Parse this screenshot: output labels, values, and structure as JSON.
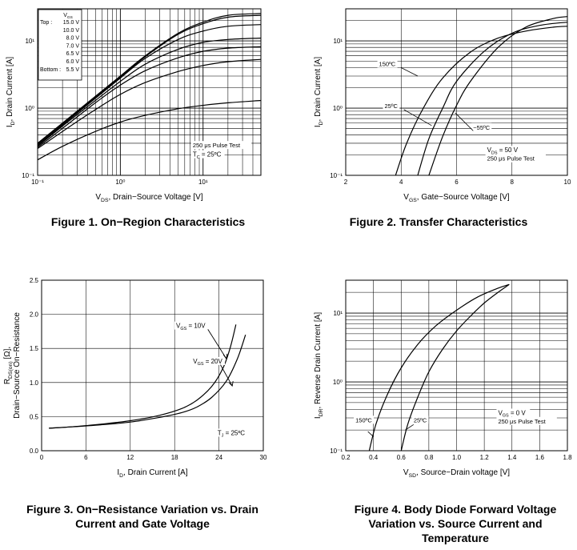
{
  "chart_data": [
    {
      "id": "fig1",
      "type": "line",
      "title": "Figure 1. On−Region Characteristics",
      "xscale": "log",
      "yscale": "log",
      "xlim": [
        0.1,
        50
      ],
      "ylim": [
        0.1,
        30
      ],
      "xticks": [
        {
          "v": 0.1,
          "l": "10⁻¹"
        },
        {
          "v": 1,
          "l": "10⁰"
        },
        {
          "v": 10,
          "l": "10¹"
        }
      ],
      "yticks": [
        {
          "v": 0.1,
          "l": "10⁻¹"
        },
        {
          "v": 1,
          "l": "10⁰"
        },
        {
          "v": 10,
          "l": "10¹"
        }
      ],
      "xlabel": {
        "pre": "V",
        "sub": "DS",
        "post": ", Drain−Source Voltage [V]"
      },
      "ylabel": {
        "pre": "I",
        "sub": "D",
        "post": ", Drain Current [A]"
      },
      "legend": {
        "header": "V_GS",
        "top_label": "Top :",
        "bottom_label": "Bottom :",
        "items": [
          "15.0 V",
          "10.0 V",
          "8.0 V",
          "7.0 V",
          "6.5 V",
          "6.0 V",
          "5.5 V"
        ]
      },
      "annotations": [
        {
          "text": "250 μs Pulse Test",
          "x": 7.5,
          "y": 0.26
        },
        {
          "pre": "T",
          "sub": "C",
          "post": " = 25ºC",
          "x": 7.5,
          "y": 0.19
        }
      ],
      "series": [
        {
          "name": "15.0 V",
          "x": [
            0.1,
            0.2,
            0.5,
            1,
            2,
            5,
            10,
            20,
            50
          ],
          "y": [
            0.3,
            0.6,
            1.5,
            3,
            6,
            13,
            19,
            24,
            25.5
          ]
        },
        {
          "name": "10.0 V",
          "x": [
            0.1,
            0.2,
            0.5,
            1,
            2,
            5,
            10,
            20,
            50
          ],
          "y": [
            0.29,
            0.58,
            1.45,
            2.9,
            5.8,
            12.5,
            18,
            22.5,
            24
          ]
        },
        {
          "name": "8.0 V",
          "x": [
            0.1,
            0.2,
            0.5,
            1,
            2,
            5,
            10,
            20,
            50
          ],
          "y": [
            0.28,
            0.56,
            1.4,
            2.8,
            5.5,
            10.5,
            14,
            16.5,
            17.5
          ]
        },
        {
          "name": "7.0 V",
          "x": [
            0.1,
            0.2,
            0.5,
            1,
            2,
            5,
            10,
            20,
            50
          ],
          "y": [
            0.27,
            0.54,
            1.3,
            2.5,
            4.5,
            7.5,
            9.5,
            10.5,
            11
          ]
        },
        {
          "name": "6.5 V",
          "x": [
            0.1,
            0.2,
            0.5,
            1,
            2,
            5,
            10,
            20,
            50
          ],
          "y": [
            0.26,
            0.5,
            1.2,
            2.2,
            3.6,
            5.6,
            7,
            7.8,
            8.2
          ]
        },
        {
          "name": "6.0 V",
          "x": [
            0.1,
            0.2,
            0.5,
            1,
            2,
            5,
            10,
            20,
            50
          ],
          "y": [
            0.25,
            0.45,
            0.95,
            1.6,
            2.4,
            3.5,
            4.3,
            4.9,
            5.3
          ]
        },
        {
          "name": "5.5 V",
          "x": [
            0.1,
            0.2,
            0.5,
            1,
            2,
            5,
            10,
            20,
            50
          ],
          "y": [
            0.17,
            0.27,
            0.45,
            0.62,
            0.78,
            0.98,
            1.1,
            1.2,
            1.3
          ]
        }
      ]
    },
    {
      "id": "fig2",
      "type": "line",
      "title": "Figure 2. Transfer Characteristics",
      "xscale": "linear",
      "yscale": "log",
      "xlim": [
        2,
        10
      ],
      "ylim": [
        0.1,
        30
      ],
      "xticks": [
        {
          "v": 2,
          "l": "2"
        },
        {
          "v": 4,
          "l": "4"
        },
        {
          "v": 6,
          "l": "6"
        },
        {
          "v": 8,
          "l": "8"
        },
        {
          "v": 10,
          "l": "10"
        }
      ],
      "yticks": [
        {
          "v": 0.1,
          "l": "10⁻¹"
        },
        {
          "v": 1,
          "l": "10⁰"
        },
        {
          "v": 10,
          "l": "10¹"
        }
      ],
      "xlabel": {
        "pre": "V",
        "sub": "GS",
        "post": ", Gate−Source Voltage [V]"
      },
      "ylabel": {
        "pre": "I",
        "sub": "D",
        "post": ", Drain Current [A]"
      },
      "annotations": [
        {
          "text": "150ºC",
          "x": 3.2,
          "y": 4.2
        },
        {
          "text": "25ºC",
          "x": 3.4,
          "y": 1.0
        },
        {
          "text": "−55ºC",
          "x": 6.6,
          "y": 0.48
        },
        {
          "pre": "V",
          "sub": "DS",
          "post": " = 50 V",
          "x": 7.1,
          "y": 0.22
        },
        {
          "text": "250 μs Pulse Test",
          "x": 7.1,
          "y": 0.165
        }
      ],
      "series": [
        {
          "name": "150ºC",
          "x": [
            3.8,
            4.2,
            4.8,
            5.5,
            6.5,
            7.5,
            8.5,
            9.5,
            10
          ],
          "y": [
            0.1,
            0.3,
            1,
            2.8,
            6.8,
            11,
            14,
            16,
            16.5
          ]
        },
        {
          "name": "25ºC",
          "x": [
            4.6,
            5.0,
            5.5,
            6.0,
            7.0,
            8.0,
            9.0,
            10
          ],
          "y": [
            0.1,
            0.35,
            1,
            2.5,
            7,
            13,
            17,
            19
          ]
        },
        {
          "name": "−55ºC",
          "x": [
            5.0,
            5.5,
            6.0,
            6.5,
            7.5,
            8.5,
            9.5,
            10
          ],
          "y": [
            0.1,
            0.38,
            1.1,
            2.5,
            8,
            16,
            21.5,
            23
          ]
        }
      ]
    },
    {
      "id": "fig3",
      "type": "line",
      "title": "Figure 3. On−Resistance Variation vs. Drain Current and Gate Voltage",
      "xscale": "linear",
      "yscale": "linear",
      "xlim": [
        0,
        30
      ],
      "ylim": [
        0,
        2.5
      ],
      "xticks": [
        {
          "v": 0,
          "l": "0"
        },
        {
          "v": 6,
          "l": "6"
        },
        {
          "v": 12,
          "l": "12"
        },
        {
          "v": 18,
          "l": "18"
        },
        {
          "v": 24,
          "l": "24"
        },
        {
          "v": 30,
          "l": "30"
        }
      ],
      "yticks": [
        {
          "v": 0,
          "l": "0.0"
        },
        {
          "v": 0.5,
          "l": "0.5"
        },
        {
          "v": 1.0,
          "l": "1.0"
        },
        {
          "v": 1.5,
          "l": "1.5"
        },
        {
          "v": 2.0,
          "l": "2.0"
        },
        {
          "v": 2.5,
          "l": "2.5"
        }
      ],
      "xlabel": {
        "pre": "I",
        "sub": "D",
        "post": ", Drain Current  [A]"
      },
      "ylabel_line1": {
        "pre": "R",
        "sub": "DS(on)",
        "post": " [Ω],"
      },
      "ylabel_line2": "Drain−Source On−Resistance",
      "annotations": [
        {
          "pre": "V",
          "sub": "GS",
          "post": " = 10V",
          "x": 18.2,
          "y": 1.8
        },
        {
          "pre": "V",
          "sub": "GS",
          "post": " = 20V",
          "x": 20.5,
          "y": 1.28
        },
        {
          "pre": "T",
          "sub": "J",
          "post": " = 25ºC",
          "x": 23.8,
          "y": 0.23
        }
      ],
      "series": [
        {
          "name": "V_GS = 10V",
          "x": [
            1,
            4,
            8,
            12,
            16,
            19,
            21,
            23,
            24.5,
            25.5,
            26.3
          ],
          "y": [
            0.33,
            0.35,
            0.39,
            0.44,
            0.52,
            0.62,
            0.74,
            0.94,
            1.2,
            1.5,
            1.85
          ]
        },
        {
          "name": "V_GS = 20V",
          "x": [
            1,
            4,
            8,
            12,
            16,
            19,
            21,
            23,
            25,
            26.5,
            27.6
          ],
          "y": [
            0.33,
            0.35,
            0.38,
            0.42,
            0.49,
            0.56,
            0.64,
            0.78,
            1.02,
            1.35,
            1.7
          ]
        }
      ]
    },
    {
      "id": "fig4",
      "type": "line",
      "title": "Figure 4. Body Diode Forward Voltage Variation vs. Source Current and Temperature",
      "xscale": "linear",
      "yscale": "log",
      "xlim": [
        0.2,
        1.8
      ],
      "ylim": [
        0.1,
        30
      ],
      "xticks": [
        {
          "v": 0.2,
          "l": "0.2"
        },
        {
          "v": 0.4,
          "l": "0.4"
        },
        {
          "v": 0.6,
          "l": "0.6"
        },
        {
          "v": 0.8,
          "l": "0.8"
        },
        {
          "v": 1.0,
          "l": "1.0"
        },
        {
          "v": 1.2,
          "l": "1.2"
        },
        {
          "v": 1.4,
          "l": "1.4"
        },
        {
          "v": 1.6,
          "l": "1.6"
        },
        {
          "v": 1.8,
          "l": "1.8"
        }
      ],
      "yticks": [
        {
          "v": 0.1,
          "l": "10⁻¹"
        },
        {
          "v": 1,
          "l": "10⁰"
        },
        {
          "v": 10,
          "l": "10¹"
        }
      ],
      "xlabel": {
        "pre": "V",
        "sub": "SD",
        "post": ", Source−Drain voltage [V]"
      },
      "ylabel": {
        "pre": "I",
        "sub": "DR",
        "post": ", Reverse Drain Current [A]"
      },
      "annotations": [
        {
          "text": "150ºC",
          "x": 0.27,
          "y": 0.26
        },
        {
          "text": "25ºC",
          "x": 0.69,
          "y": 0.26
        },
        {
          "pre": "V",
          "sub": "GS",
          "post": " = 0 V",
          "x": 1.3,
          "y": 0.33
        },
        {
          "text": "250 μs Pulse Test",
          "x": 1.3,
          "y": 0.25
        }
      ],
      "series": [
        {
          "name": "150ºC",
          "x": [
            0.37,
            0.42,
            0.5,
            0.6,
            0.72,
            0.85,
            1.0,
            1.15,
            1.3,
            1.38
          ],
          "y": [
            0.1,
            0.25,
            0.65,
            1.6,
            3.5,
            6.5,
            11,
            17,
            23,
            26
          ]
        },
        {
          "name": "25ºC",
          "x": [
            0.6,
            0.65,
            0.72,
            0.8,
            0.9,
            1.0,
            1.1,
            1.2,
            1.3,
            1.38
          ],
          "y": [
            0.1,
            0.25,
            0.6,
            1.4,
            3,
            5.5,
            9,
            14,
            20,
            26
          ]
        }
      ]
    }
  ]
}
